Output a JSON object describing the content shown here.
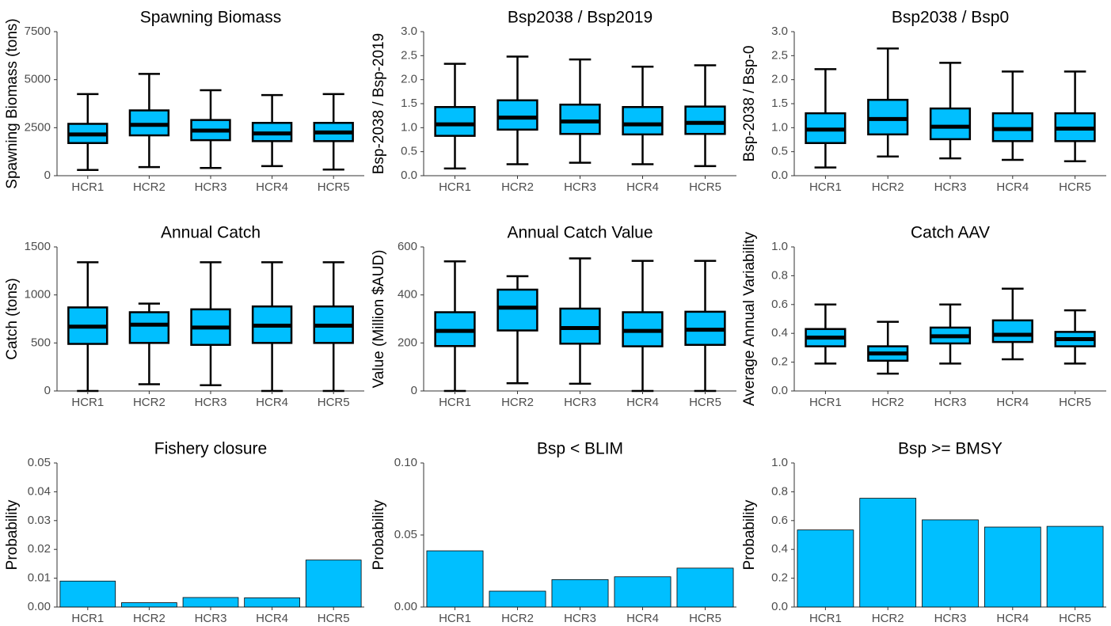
{
  "chart_data": [
    {
      "type": "box",
      "title": "Spawning Biomass",
      "y_label": "Spawning Biomass (tons)",
      "categories": [
        "HCR1",
        "HCR2",
        "HCR3",
        "HCR4",
        "HCR5"
      ],
      "color": "#00BFFF",
      "min": [
        300,
        450,
        400,
        500,
        320
      ],
      "q1": [
        1700,
        2100,
        1850,
        1800,
        1800
      ],
      "median": [
        2150,
        2650,
        2350,
        2200,
        2250
      ],
      "q3": [
        2700,
        3400,
        2900,
        2750,
        2750
      ],
      "max": [
        4250,
        5300,
        4450,
        4200,
        4250
      ],
      "ylim": [
        0,
        7500
      ],
      "yticks": [
        0,
        2500,
        5000,
        7500
      ]
    },
    {
      "type": "box",
      "title": "Bsp2038 / Bsp2019",
      "y_label": "Bsp-2038 / Bsp-2019",
      "categories": [
        "HCR1",
        "HCR2",
        "HCR3",
        "HCR4",
        "HCR5"
      ],
      "color": "#00BFFF",
      "min": [
        0.15,
        0.24,
        0.27,
        0.24,
        0.2
      ],
      "q1": [
        0.83,
        0.96,
        0.87,
        0.86,
        0.87
      ],
      "median": [
        1.07,
        1.21,
        1.13,
        1.07,
        1.1
      ],
      "q3": [
        1.43,
        1.57,
        1.48,
        1.43,
        1.44
      ],
      "max": [
        2.33,
        2.48,
        2.42,
        2.27,
        2.3
      ],
      "ylim": [
        0,
        3
      ],
      "yticks": [
        {
          "value": 0,
          "label": "0.0"
        },
        0.5,
        {
          "value": 1,
          "label": "1.0"
        },
        1.5,
        {
          "value": 2,
          "label": "2.0"
        },
        2.5,
        {
          "value": 3,
          "label": "3.0"
        }
      ]
    },
    {
      "type": "box",
      "title": "Bsp2038 / Bsp0",
      "y_label": "Bsp-2038 / Bsp-0",
      "categories": [
        "HCR1",
        "HCR2",
        "HCR3",
        "HCR4",
        "HCR5"
      ],
      "color": "#00BFFF",
      "min": [
        0.17,
        0.4,
        0.36,
        0.33,
        0.3
      ],
      "q1": [
        0.68,
        0.86,
        0.76,
        0.72,
        0.72
      ],
      "median": [
        0.96,
        1.18,
        1.02,
        0.97,
        0.98
      ],
      "q3": [
        1.3,
        1.58,
        1.4,
        1.3,
        1.3
      ],
      "max": [
        2.22,
        2.65,
        2.35,
        2.17,
        2.17
      ],
      "ylim": [
        0,
        3
      ],
      "yticks": [
        {
          "value": 0,
          "label": "0.0"
        },
        0.5,
        {
          "value": 1,
          "label": "1.0"
        },
        1.5,
        {
          "value": 2,
          "label": "2.0"
        },
        2.5,
        {
          "value": 3,
          "label": "3.0"
        }
      ]
    },
    {
      "type": "box",
      "title": "Annual Catch",
      "y_label": "Catch (tons)",
      "categories": [
        "HCR1",
        "HCR2",
        "HCR3",
        "HCR4",
        "HCR5"
      ],
      "color": "#00BFFF",
      "min": [
        0,
        70,
        60,
        0,
        0
      ],
      "q1": [
        490,
        500,
        480,
        500,
        500
      ],
      "median": [
        670,
        690,
        660,
        680,
        680
      ],
      "q3": [
        870,
        820,
        850,
        880,
        880
      ],
      "max": [
        1340,
        910,
        1340,
        1340,
        1340
      ],
      "ylim": [
        0,
        1500
      ],
      "yticks": [
        0,
        500,
        1000,
        1500
      ]
    },
    {
      "type": "box",
      "title": "Annual Catch Value",
      "y_label": "Value (Million $AUD)",
      "categories": [
        "HCR1",
        "HCR2",
        "HCR3",
        "HCR4",
        "HCR5"
      ],
      "color": "#00BFFF",
      "min": [
        0,
        32,
        30,
        0,
        0
      ],
      "q1": [
        187,
        252,
        197,
        186,
        192
      ],
      "median": [
        250,
        347,
        262,
        250,
        255
      ],
      "q3": [
        328,
        422,
        343,
        328,
        330
      ],
      "max": [
        540,
        478,
        552,
        542,
        542
      ],
      "ylim": [
        0,
        600
      ],
      "yticks": [
        0,
        200,
        400,
        600
      ]
    },
    {
      "type": "box",
      "title": "Catch AAV",
      "y_label": "Average Annual Variability",
      "categories": [
        "HCR1",
        "HCR2",
        "HCR3",
        "HCR4",
        "HCR5"
      ],
      "color": "#00BFFF",
      "min": [
        0.19,
        0.12,
        0.19,
        0.22,
        0.19
      ],
      "q1": [
        0.31,
        0.21,
        0.33,
        0.34,
        0.31
      ],
      "median": [
        0.37,
        0.26,
        0.38,
        0.39,
        0.36
      ],
      "q3": [
        0.43,
        0.31,
        0.44,
        0.49,
        0.41
      ],
      "max": [
        0.6,
        0.48,
        0.6,
        0.71,
        0.56
      ],
      "ylim": [
        0,
        1
      ],
      "yticks": [
        {
          "value": 0,
          "label": "0.0"
        },
        0.2,
        0.4,
        0.6,
        0.8,
        {
          "value": 1,
          "label": "1.0"
        }
      ]
    },
    {
      "type": "bar",
      "title": "Fishery closure",
      "y_label": "Probability",
      "categories": [
        "HCR1",
        "HCR2",
        "HCR3",
        "HCR4",
        "HCR5"
      ],
      "color": "#00BFFF",
      "values": [
        0.009,
        0.0015,
        0.0033,
        0.0032,
        0.0163
      ],
      "ylim": [
        0,
        0.05
      ],
      "yticks": [
        {
          "value": 0,
          "label": "0.00"
        },
        {
          "value": 0.01,
          "label": "0.01"
        },
        {
          "value": 0.02,
          "label": "0.02"
        },
        {
          "value": 0.03,
          "label": "0.03"
        },
        {
          "value": 0.04,
          "label": "0.04"
        },
        {
          "value": 0.05,
          "label": "0.05"
        }
      ]
    },
    {
      "type": "bar",
      "title": "Bsp < BLIM",
      "y_label": "Probability",
      "categories": [
        "HCR1",
        "HCR2",
        "HCR3",
        "HCR4",
        "HCR5"
      ],
      "color": "#00BFFF",
      "values": [
        0.039,
        0.011,
        0.019,
        0.021,
        0.027
      ],
      "ylim": [
        0,
        0.1
      ],
      "yticks": [
        {
          "value": 0,
          "label": "0.00"
        },
        0.05,
        {
          "value": 0.1,
          "label": "0.10"
        }
      ]
    },
    {
      "type": "bar",
      "title": "Bsp >= BMSY",
      "y_label": "Probability",
      "categories": [
        "HCR1",
        "HCR2",
        "HCR3",
        "HCR4",
        "HCR5"
      ],
      "color": "#00BFFF",
      "values": [
        0.535,
        0.755,
        0.605,
        0.555,
        0.56
      ],
      "ylim": [
        0,
        1
      ],
      "yticks": [
        {
          "value": 0,
          "label": "0.0"
        },
        0.2,
        0.4,
        0.6,
        0.8,
        {
          "value": 1,
          "label": "1.0"
        }
      ]
    }
  ]
}
